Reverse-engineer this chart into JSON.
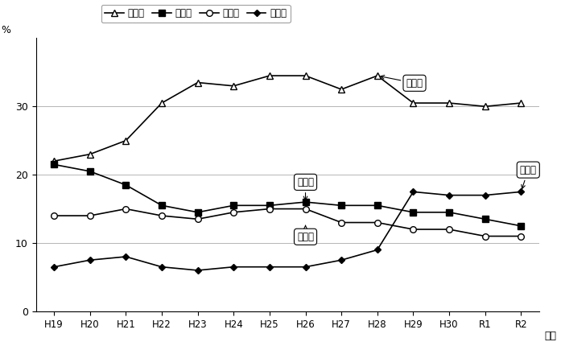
{
  "years": [
    "H19",
    "H20",
    "H21",
    "H22",
    "H23",
    "H24",
    "H25",
    "H26",
    "H27",
    "H28",
    "H29",
    "H30",
    "R1",
    "R2"
  ],
  "minsei": [
    22.0,
    23.0,
    25.0,
    30.5,
    33.5,
    33.0,
    34.5,
    34.5,
    32.5,
    34.5,
    30.5,
    30.5,
    30.0,
    30.5
  ],
  "doboku": [
    21.5,
    20.5,
    18.5,
    15.5,
    14.5,
    15.5,
    15.5,
    16.0,
    15.5,
    15.5,
    14.5,
    14.5,
    13.5,
    12.5
  ],
  "kosai": [
    14.0,
    14.0,
    15.0,
    14.0,
    13.5,
    14.5,
    15.0,
    15.0,
    13.0,
    13.0,
    12.0,
    12.0,
    11.0,
    11.0
  ],
  "kyoiku": [
    6.5,
    7.5,
    8.0,
    6.5,
    6.0,
    6.5,
    6.5,
    6.5,
    7.5,
    9.0,
    17.5,
    17.0,
    17.0,
    17.5
  ],
  "ylabel": "%",
  "xlabel": "年度",
  "ylim": [
    0,
    40
  ],
  "yticks": [
    0,
    10,
    20,
    30
  ],
  "legend_labels": [
    "民生費",
    "土木費",
    "公債費",
    "教育費"
  ],
  "ann_minsei_text": "民生費",
  "ann_doboku_text": "土木費",
  "ann_kosai_text": "公債費",
  "ann_kyoiku_text": "教育費"
}
